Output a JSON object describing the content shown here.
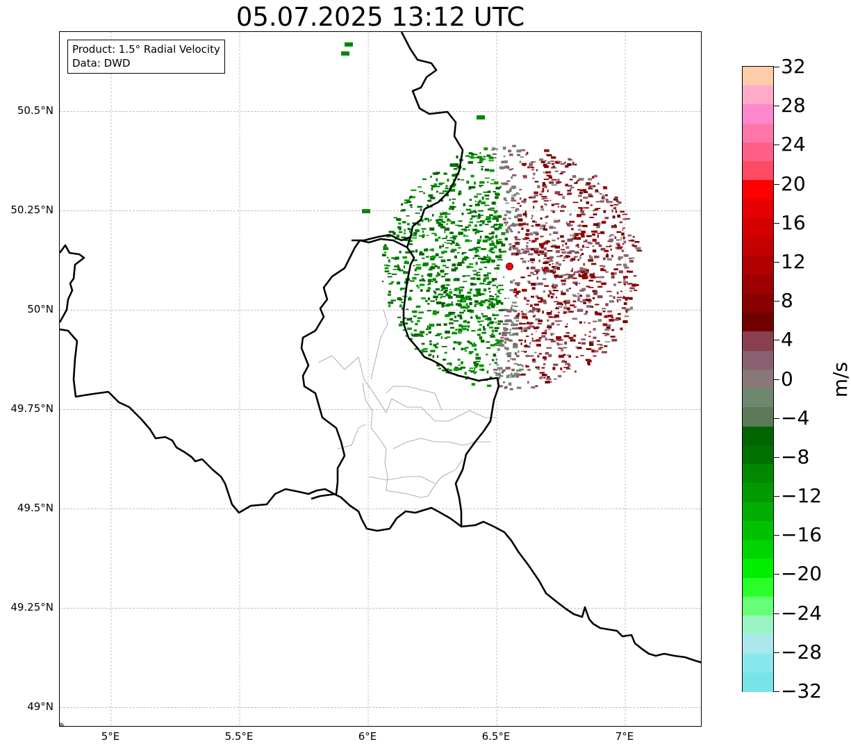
{
  "title": "05.07.2025 13:12 UTC",
  "infobox": {
    "product": "Product: 1.5° Radial Velocity",
    "data": "Data: DWD"
  },
  "map": {
    "lon_range": [
      4.8,
      7.3
    ],
    "lat_range": [
      48.95,
      50.7
    ],
    "lat_ticks": [
      {
        "value": 50.5,
        "label": "50.5°N"
      },
      {
        "value": 50.25,
        "label": "50.25°N"
      },
      {
        "value": 50.0,
        "label": "50°N"
      },
      {
        "value": 49.75,
        "label": "49.75°N"
      },
      {
        "value": 49.5,
        "label": "49.5°N"
      },
      {
        "value": 49.25,
        "label": "49.25°N"
      },
      {
        "value": 49.0,
        "label": "49°N"
      }
    ],
    "lon_ticks": [
      {
        "value": 5.0,
        "label": "5°E"
      },
      {
        "value": 5.5,
        "label": "5.5°E"
      },
      {
        "value": 6.0,
        "label": "6°E"
      },
      {
        "value": 6.5,
        "label": "6.5°E"
      },
      {
        "value": 7.0,
        "label": "7°E"
      }
    ],
    "radar_site": {
      "lon": 6.55,
      "lat": 50.11
    },
    "grid": true
  },
  "colorbar": {
    "unit": "m/s",
    "min": -32,
    "max": 32,
    "ticks": [
      "32",
      "28",
      "24",
      "20",
      "16",
      "12",
      "8",
      "4",
      "0",
      "−4",
      "−8",
      "−12",
      "−16",
      "−20",
      "−24",
      "−28",
      "−32"
    ],
    "colors_top_to_bottom": [
      "#ffccaa",
      "#ffaac8",
      "#ff88cc",
      "#ff77aa",
      "#ff6088",
      "#ff4a66",
      "#ff0000",
      "#e40000",
      "#d40000",
      "#c40000",
      "#b00000",
      "#9c0000",
      "#880000",
      "#700000",
      "#884050",
      "#886070",
      "#887878",
      "#6e8870",
      "#5c7a58",
      "#006400",
      "#007000",
      "#008800",
      "#009a00",
      "#00ad00",
      "#00c000",
      "#00d400",
      "#00ee00",
      "#2aff2a",
      "#66ff77",
      "#99f5c4",
      "#aae8ee",
      "#88e8ee",
      "#77e4e8"
    ]
  }
}
